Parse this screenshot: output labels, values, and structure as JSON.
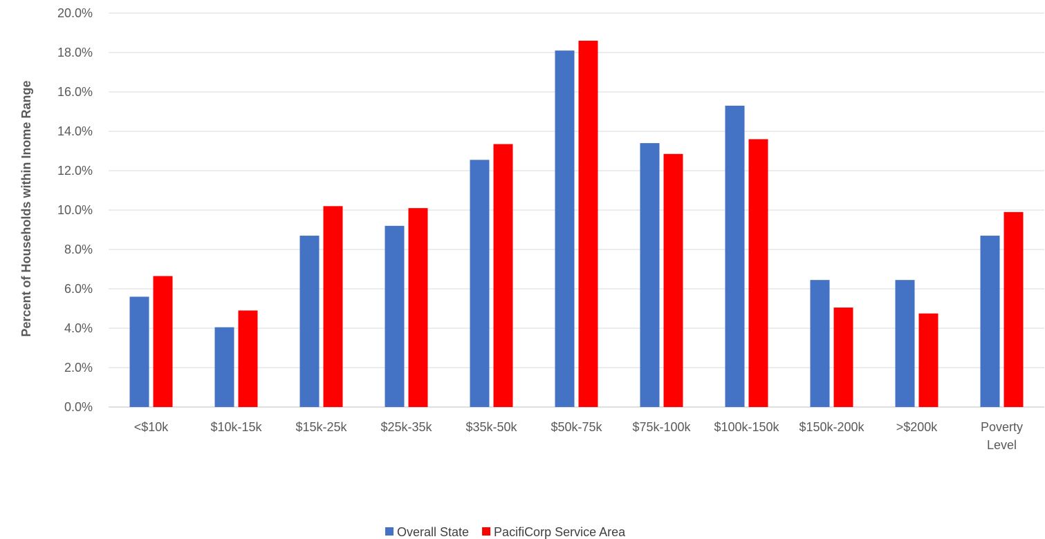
{
  "chart_data": {
    "type": "bar",
    "title": "",
    "xlabel": "",
    "ylabel": "Percent of Households within Inome Range",
    "ylim": [
      0,
      20
    ],
    "y_tick_step": 2,
    "y_tick_format": "percent_1dp",
    "grid": "horizontal",
    "legend_position": "bottom",
    "categories": [
      "<$10k",
      "$10k-15k",
      "$15k-25k",
      "$25k-35k",
      "$35k-50k",
      "$50k-75k",
      "$75k-100k",
      "$100k-150k",
      "$150k-200k",
      ">$200k",
      "Poverty Level"
    ],
    "category_label_lines": [
      [
        "<$10k"
      ],
      [
        "$10k-15k"
      ],
      [
        "$15k-25k"
      ],
      [
        "$25k-35k"
      ],
      [
        "$35k-50k"
      ],
      [
        "$50k-75k"
      ],
      [
        "$75k-100k"
      ],
      [
        "$100k-150k"
      ],
      [
        "$150k-200k"
      ],
      [
        ">$200k"
      ],
      [
        "Poverty",
        "Level"
      ]
    ],
    "series": [
      {
        "name": "Overall State",
        "color": "#4472C4",
        "values": [
          5.6,
          4.05,
          8.7,
          9.2,
          12.55,
          18.1,
          13.4,
          15.3,
          6.45,
          6.45,
          8.7
        ]
      },
      {
        "name": "PacifiCorp Service Area",
        "color": "#FF0000",
        "values": [
          6.65,
          4.9,
          10.2,
          10.1,
          13.35,
          18.6,
          12.85,
          13.6,
          5.05,
          4.75,
          9.9
        ]
      }
    ]
  }
}
